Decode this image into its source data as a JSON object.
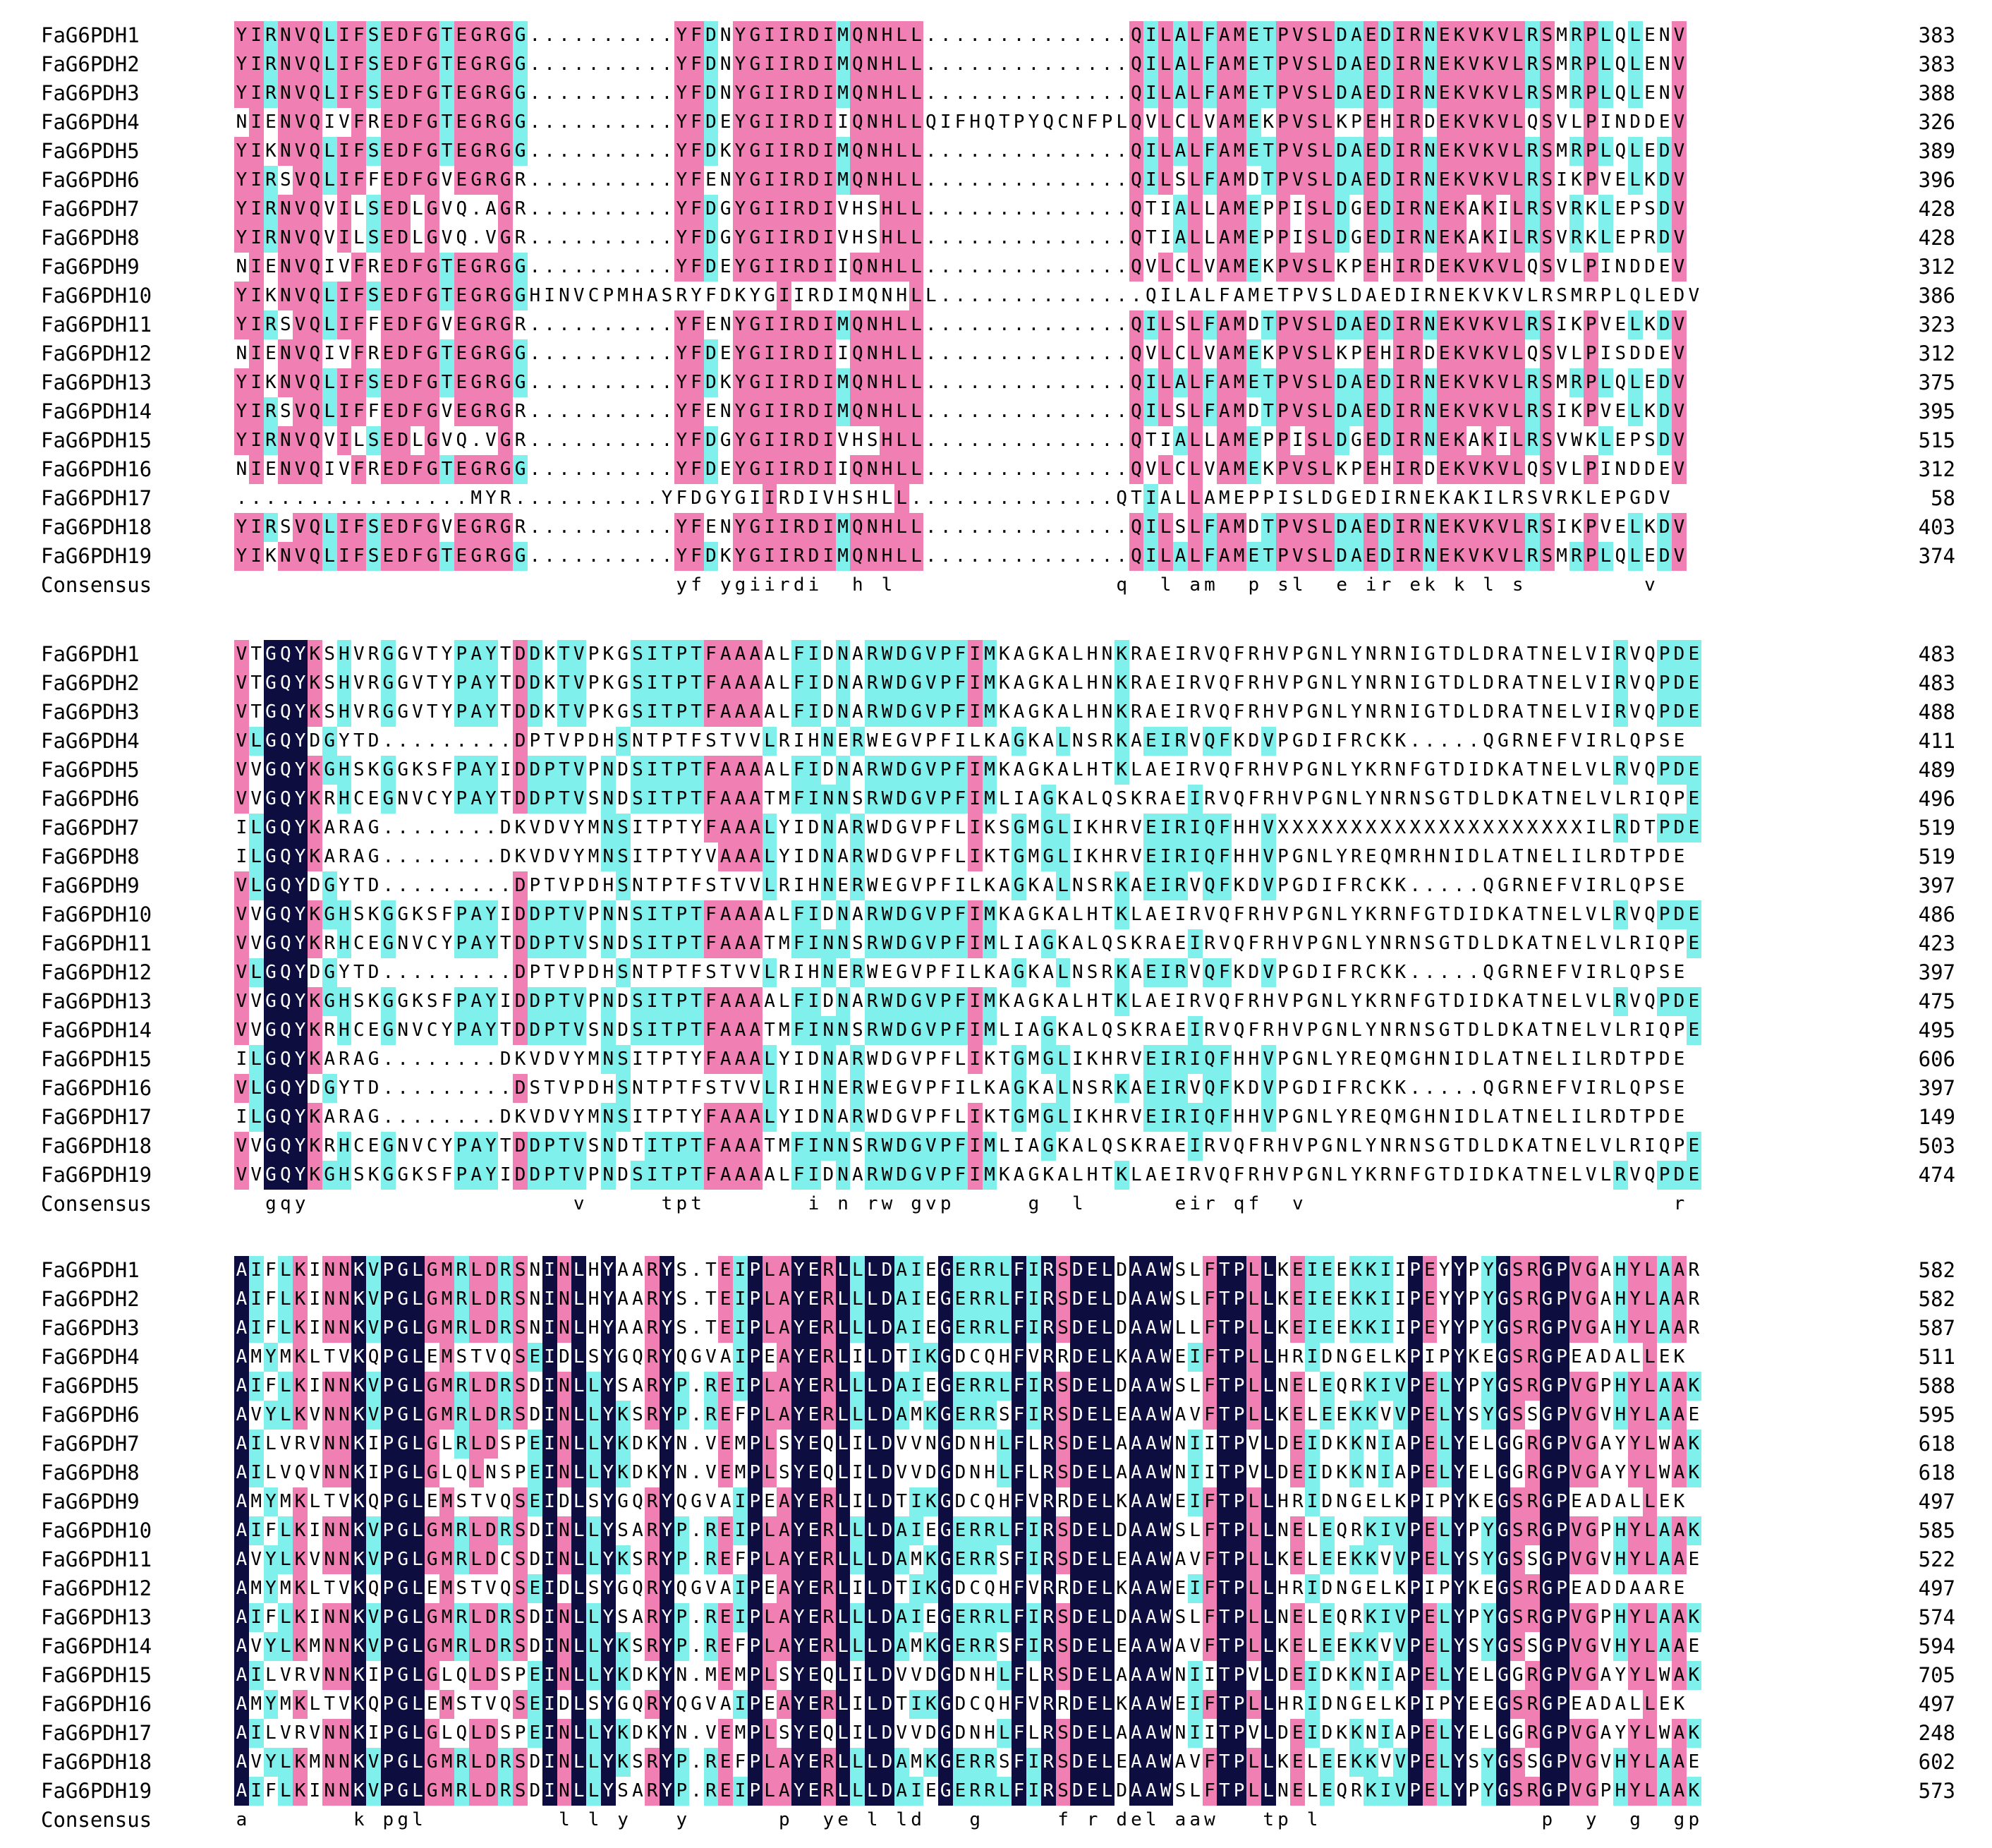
{
  "colors": {
    "identical": "#0d0d40",
    "high": "#f07fb3",
    "medium": "#7ff0ec",
    "background": "#ffffff"
  },
  "consensus_label": "Consensus",
  "blocks": [
    {
      "rows": [
        {
          "name": "FaG6PDH1",
          "seq": "YIRNVQLIFSEDFGTEGRGG..........YFDNYGIIRDIMQNHLL..............QILALFAMETPVSLDAEDIRNEKVKVLRSMRPLQLENV",
          "end": "383"
        },
        {
          "name": "FaG6PDH2",
          "seq": "YIRNVQLIFSEDFGTEGRGG..........YFDNYGIIRDIMQNHLL..............QILALFAMETPVSLDAEDIRNEKVKVLRSMRPLQLENV",
          "end": "383"
        },
        {
          "name": "FaG6PDH3",
          "seq": "YIRNVQLIFSEDFGTEGRGG..........YFDNYGIIRDIMQNHLL..............QILALFAMETPVSLDAEDIRNEKVKVLRSMRPLQLENV",
          "end": "388"
        },
        {
          "name": "FaG6PDH4",
          "seq": "NIENVQIVFREDFGTEGRGG..........YFDEYGIIRDIIQNHLLQIFHQTPYQCNFPLQVLCLVAMEKPVSLKPEHIRDEKVKVLQSVLPINDDEV",
          "end": "326"
        },
        {
          "name": "FaG6PDH5",
          "seq": "YIKNVQLIFSEDFGTEGRGG..........YFDKYGIIRDIMQNHLL..............QILALFAMETPVSLDAEDIRNEKVKVLRSMRPLQLEDV",
          "end": "389"
        },
        {
          "name": "FaG6PDH6",
          "seq": "YIRSVQLIFFEDFGVEGRGR..........YFENYGIIRDIMQNHLL..............QILSLFAMDTPVSLDAEDIRNEKVKVLRSIKPVELKDV",
          "end": "396"
        },
        {
          "name": "FaG6PDH7",
          "seq": "YIRNVQVILSEDLGVQ.AGR..........YFDGYGIIRDIVHSHLL..............QTIALLAMEPPISLDGEDIRNEKAKILRSVRKLEPSDV",
          "end": "428"
        },
        {
          "name": "FaG6PDH8",
          "seq": "YIRNVQVILSEDLGVQ.VGR..........YFDGYGIIRDIVHSHLL..............QTIALLAMEPPISLDGEDIRNEKAKILRSVRKLEPRDV",
          "end": "428"
        },
        {
          "name": "FaG6PDH9",
          "seq": "NIENVQIVFREDFGTEGRGG..........YFDEYGIIRDIIQNHLL..............QVLCLVAMEKPVSLKPEHIRDEKVKVLQSVLPINDDEV",
          "end": "312"
        },
        {
          "name": "FaG6PDH10",
          "seq": "YIKNVQLIFSEDFGTEGRGGHINVCPMHASRYFDKYGIIRDIMQNHLL..............QILALFAMETPVSLDAEDIRNEKVKVLRSMRPLQLEDV",
          "end": "386"
        },
        {
          "name": "FaG6PDH11",
          "seq": "YIRSVQLIFFEDFGVEGRGR..........YFENYGIIRDIMQNHLL..............QILSLFAMDTPVSLDAEDIRNEKVKVLRSIKPVELKDV",
          "end": "323"
        },
        {
          "name": "FaG6PDH12",
          "seq": "NIENVQIVFREDFGTEGRGG..........YFDEYGIIRDIIQNHLL..............QVLCLVAMEKPVSLKPEHIRDEKVKVLQSVLPISDDEV",
          "end": "312"
        },
        {
          "name": "FaG6PDH13",
          "seq": "YIKNVQLIFSEDFGTEGRGG..........YFDKYGIIRDIMQNHLL..............QILALFAMETPVSLDAEDIRNEKVKVLRSMRPLQLEDV",
          "end": "375"
        },
        {
          "name": "FaG6PDH14",
          "seq": "YIRSVQLIFFEDFGVEGRGR..........YFENYGIIRDIMQNHLL..............QILSLFAMDTPVSLDAEDIRNEKVKVLRSIKPVELKDV",
          "end": "395"
        },
        {
          "name": "FaG6PDH15",
          "seq": "YIRNVQVILSEDLGVQ.VGR..........YFDGYGIIRDIVHSHLL..............QTIALLAMEPPISLDGEDIRNEKAKILRSVWKLEPSDV",
          "end": "515"
        },
        {
          "name": "FaG6PDH16",
          "seq": "NIENVQIVFREDFGTEGRGG..........YFDEYGIIRDIIQNHLL..............QVLCLVAMEKPVSLKPEHIRDEKVKVLQSVLPINDDEV",
          "end": "312"
        },
        {
          "name": "FaG6PDH17",
          "seq": "................MYR..........YFDGYGIIRDIVHSHLL..............QTIALLAMEPPISLDGEDIRNEKAKILRSVRKLEPGDV",
          "end": "58"
        },
        {
          "name": "FaG6PDH18",
          "seq": "YIRSVQLIFSEDFGVEGRGR..........YFENYGIIRDIMQNHLL..............QILSLFAMDTPVSLDAEDIRNEKVKVLRSIKPVELKDV",
          "end": "403"
        },
        {
          "name": "FaG6PDH19",
          "seq": "YIKNVQLIFSEDFGTEGRGG..........YFDKYGIIRDIMQNHLL..............QILALFAMETPVSLDAEDIRNEKVKVLRSMRPLQLEDV",
          "end": "374"
        }
      ],
      "consensus": "                              yf ygiirdi  h l               q  l am  p sl  e ir ek k l s        v"
    },
    {
      "rows": [
        {
          "name": "FaG6PDH1",
          "seq": "VTGQYKSHVRGGVTYPAYTDDKTVPKGSITPTFAAAALFIDNARWDGVPFIMKAGKALHNKRAEIRVQFRHVPGNLYNRNIGTDLDRATNELVIRVQPDE",
          "end": "483"
        },
        {
          "name": "FaG6PDH2",
          "seq": "VTGQYKSHVRGGVTYPAYTDDKTVPKGSITPTFAAAALFIDNARWDGVPFIMKAGKALHNKRAEIRVQFRHVPGNLYNRNIGTDLDRATNELVIRVQPDE",
          "end": "483"
        },
        {
          "name": "FaG6PDH3",
          "seq": "VTGQYKSHVRGGVTYPAYTDDKTVPKGSITPTFAAAALFIDNARWDGVPFIMKAGKALHNKRAEIRVQFRHVPGNLYNRNIGTDLDRATNELVIRVQPDE",
          "end": "488"
        },
        {
          "name": "FaG6PDH4",
          "seq": "VLGQYDGYTD.........DPTVPDHSNTPTFSTVVLRIHNERWEGVPFILKAGKALNSRKAEIRVQFKDVPGDIFRCKK.....QGRNEFVIRLQPSE",
          "end": "411"
        },
        {
          "name": "FaG6PDH5",
          "seq": "VVGQYKGHSKGGKSFPAYIDDPTVPNDSITPTFAAAALFIDNARWDGVPFIMKAGKALHTKLAEIRVQFRHVPGNLYKRNFGTDIDKATNELVLRVQPDE",
          "end": "489"
        },
        {
          "name": "FaG6PDH6",
          "seq": "VVGQYKRHCEGNVCYPAYTDDPTVSNDSITPTFAAATMFINNSRWDGVPFIMLIAGKALQSKRAEIRVQFRHVPGNLYNRNSGTDLDKATNELVLRIQPEE",
          "end": "496"
        },
        {
          "name": "FaG6PDH7",
          "seq": "ILGQYKARAG........DKVDVYMNSITPTYFAAALYIDNARWDGVPFLIKSGMGLIKHRVEIRIQFHHVXXXXXXXXXXXXXXXXXXXXXILRDTPDE",
          "end": "519"
        },
        {
          "name": "FaG6PDH8",
          "seq": "ILGQYKARAG........DKVDVYMNSITPTYVAAALYIDNARWDGVPFLIKTGMGLIKHRVEIRIQFHHVPGNLYREQMRHNIDLATNELILRDTPDE",
          "end": "519"
        },
        {
          "name": "FaG6PDH9",
          "seq": "VLGQYDGYTD.........DPTVPDHSNTPTFSTVVLRIHNERWEGVPFILKAGKALNSRKAEIRVQFKDVPGDIFRCKK.....QGRNEFVIRLQPSE",
          "end": "397"
        },
        {
          "name": "FaG6PDH10",
          "seq": "VVGQYKGHSKGGKSFPAYIDDPTVPNNSITPTFAAAALFIDNARWDGVPFIMKAGKALHTKLAEIRVQFRHVPGNLYKRNFGTDIDKATNELVLRVQPDE",
          "end": "486"
        },
        {
          "name": "FaG6PDH11",
          "seq": "VVGQYKRHCEGNVCYPAYTDDPTVSNDSITPTFAAATMFINNSRWDGVPFIMLIAGKALQSKRAEIRVQFRHVPGNLYNRNSGTDLDKATNELVLRIQPEE",
          "end": "423"
        },
        {
          "name": "FaG6PDH12",
          "seq": "VLGQYDGYTD.........DPTVPDHSNTPTFSTVVLRIHNERWEGVPFILKAGKALNSRKAEIRVQFKDVPGDIFRCKK.....QGRNEFVIRLQPSE",
          "end": "397"
        },
        {
          "name": "FaG6PDH13",
          "seq": "VVGQYKGHSKGGKSFPAYIDDPTVPNDSITPTFAAAALFIDNARWDGVPFIMKAGKALHTKLAEIRVQFRHVPGNLYKRNFGTDIDKATNELVLRVQPDE",
          "end": "475"
        },
        {
          "name": "FaG6PDH14",
          "seq": "VVGQYKRHCEGNVCYPAYTDDPTVSNDSITPTFAAATMFINNSRWDGVPFIMLIAGKALQSKRAEIRVQFRHVPGNLYNRNSGTDLDKATNELVLRIQPEE",
          "end": "495"
        },
        {
          "name": "FaG6PDH15",
          "seq": "ILGQYKARAG........DKVDVYMNSITPTYFAAALYIDNARWDGVPFLIKTGMGLIKHRVEIRIQFHHVPGNLYREQMGHNIDLATNELILRDTPDE",
          "end": "606"
        },
        {
          "name": "FaG6PDH16",
          "seq": "VLGQYDGYTD.........DSTVPDHSNTPTFSTVVLRIHNERWEGVPFILKAGKALNSRKAEIRVQFKDVPGDIFRCKK.....QGRNEFVIRLQPSE",
          "end": "397"
        },
        {
          "name": "FaG6PDH17",
          "seq": "ILGQYKARAG........DKVDVYMNSITPTYFAAALYIDNARWDGVPFLIKTGMGLIKHRVEIRIQFHHVPGNLYREQMGHNIDLATNELILRDTPDE",
          "end": "149"
        },
        {
          "name": "FaG6PDH18",
          "seq": "VVGQYKRHCEGNVCYPAYTDDPTVSNDTITPTFAAATMFINNSRWDGVPFIMLIAGKALQSKRAEIRVQFRHVPGNLYNRNSGTDLDKATNELVLRIQPEE",
          "end": "503"
        },
        {
          "name": "FaG6PDH19",
          "seq": "VVGQYKGHSKGGKSFPAYIDDPTVPNDSITPTFAAAALFIDNARWDGVPFIMKAGKALHTKLAEIRVQFRHVPGNLYKRNFGTDIDKATNELVLRVQPDE",
          "end": "474"
        }
      ],
      "consensus": "  gqy                  v     tpt       i n rw gvp     g  l      eir qf  v                         r  p e"
    },
    {
      "rows": [
        {
          "name": "FaG6PDH1",
          "seq": "AIFLKINNKVPGLGMRLDRSNINLHYAARYS.TEIPLAYERLLLDAIEGERRLFIRSDELDAAWSLFTPLLKEIEEKKIIPEYYPYGSRGPVGAHYLAAR",
          "end": "582"
        },
        {
          "name": "FaG6PDH2",
          "seq": "AIFLKINNKVPGLGMRLDRSNINLHYAARYS.TEIPLAYERLLLDAIEGERRLFIRSDELDAAWSLFTPLLKEIEEKKIIPEYYPYGSRGPVGAHYLAAR",
          "end": "582"
        },
        {
          "name": "FaG6PDH3",
          "seq": "AIFLKINNKVPGLGMRLDRSNINLHYAARYS.TEIPLAYERLLLDAIEGERRLFIRSDELDAAWLLFTPLLKEIEEKKIIPEYYPYGSRGPVGAHYLAAR",
          "end": "587"
        },
        {
          "name": "FaG6PDH4",
          "seq": "AMYMKLTVKQPGLEMSTVQSEIDLSYGQRYQGVAIPEAYERLILDTIKGDCQHFVRRDELKAAWEIFTPLLHRIDNGELKPIPYKEGSRGPEADALLEK",
          "end": "511"
        },
        {
          "name": "FaG6PDH5",
          "seq": "AIFLKINNKVPGLGMRLDRSDINLLYSARYP.REIPLAYERLLLDAIEGERRLFIRSDELDAAWSLFTPLLNELEQRKIVPELYPYGSRGPVGPHYLAAK",
          "end": "588"
        },
        {
          "name": "FaG6PDH6",
          "seq": "AVYLKVNNKVPGLGMRLDRSDINLLYKSRYP.REFPLAYERLLLDAMKGERRSFIRSDELEAAWAVFTPLLKELEEKKVVPELYSYGSSGPVGVHYLAAE",
          "end": "595"
        },
        {
          "name": "FaG6PDH7",
          "seq": "AILVRVNNKIPGLGLRLDSPEINLLYKDKYN.VEMPLSYEQLILDVVNGDNHLFLRSDELAAAWNIITPVLDEIDKKNIAPELYELGGRGPVGAYYLWAK",
          "end": "618"
        },
        {
          "name": "FaG6PDH8",
          "seq": "AILVQVNNKIPGLGLQLNSPEINLLYKDKYN.VEMPLSYEQLILDVVDGDNHLFLRSDELAAAWNIITPVLDEIDKKNIAPELYELGGRGPVGAYYLWAK",
          "end": "618"
        },
        {
          "name": "FaG6PDH9",
          "seq": "AMYMKLTVKQPGLEMSTVQSEIDLSYGQRYQGVAIPEAYERLILDTIKGDCQHFVRRDELKAAWEIFTPLLHRIDNGELKPIPYKEGSRGPEADALLEK",
          "end": "497"
        },
        {
          "name": "FaG6PDH10",
          "seq": "AIFLKINNKVPGLGMRLDRSDINLLYSARYP.REIPLAYERLLLDAIEGERRLFIRSDELDAAWSLFTPLLNELEQRKIVPELYPYGSRGPVGPHYLAAK",
          "end": "585"
        },
        {
          "name": "FaG6PDH11",
          "seq": "AVYLKVNNKVPGLGMRLDCSDINLLYKSRYP.REFPLAYERLLLDAMKGERRSFIRSDELEAAWAVFTPLLKELEEKKVVPELYSYGSSGPVGVHYLAAE",
          "end": "522"
        },
        {
          "name": "FaG6PDH12",
          "seq": "AMYMKLTVKQPGLEMSTVQSEIDLSYGQRYQGVAIPEAYERLILDTIKGDCQHFVRRDELKAAWEIFTPLLHRIDNGELKPIPYKEGSRGPEADDAARE",
          "end": "497"
        },
        {
          "name": "FaG6PDH13",
          "seq": "AIFLKINNKVPGLGMRLDRSDINLLYSARYP.REIPLAYERLLLDAIEGERRLFIRSDELDAAWSLFTPLLNELEQRKIVPELYPYGSRGPVGPHYLAAK",
          "end": "574"
        },
        {
          "name": "FaG6PDH14",
          "seq": "AVYLKMNNKVPGLGMRLDRSDINLLYKSRYP.REFPLAYERLLLDAMKGERRSFIRSDELEAAWAVFTPLLKELEEKKVVPELYSYGSSGPVGVHYLAAE",
          "end": "594"
        },
        {
          "name": "FaG6PDH15",
          "seq": "AILVRVNNKIPGLGLQLDSPEINLLYKDKYN.MEMPLSYEQLILDVVDGDNHLFLRSDELAAAWNIITPVLDEIDKKNIAPELYELGGRGPVGAYYLWAK",
          "end": "705"
        },
        {
          "name": "FaG6PDH16",
          "seq": "AMYMKLTVKQPGLEMSTVQSEIDLSYGQRYQGVAIPEAYERLILDTIKGDCQHFVRRDELKAAWEIFTPLLHRIDNGELKPIPYEEGSRGPEADALLEK",
          "end": "497"
        },
        {
          "name": "FaG6PDH17",
          "seq": "AILVRVNNKIPGLGLQLDSPEINLLYKDKYN.VEMPLSYEQLILDVVDGDNHLFLRSDELAAAWNIITPVLDEIDKKNIAPELYELGGRGPVGAYYLWAK",
          "end": "248"
        },
        {
          "name": "FaG6PDH18",
          "seq": "AVYLKMNNKVPGLGMRLDRSDINLLYKSRYP.REFPLAYERLLLDAMKGERRSFIRSDELEAAWAVFTPLLKELEEKKVVPELYSYGSSGPVGVHYLAAE",
          "end": "602"
        },
        {
          "name": "FaG6PDH19",
          "seq": "AIFLKINNKVPGLGMRLDRSDINLLYSARYP.REIPLAYERLLLDAIEGERRLFIRSDELDAAWSLFTPLLNELEQRKIVPELYPYGSRGPVGPHYLAAK",
          "end": "573"
        }
      ],
      "consensus": "a       k pgl         l l y   y      p  ye l ld   g     f r del aaw   tp l               p  y  g  gp"
    }
  ]
}
